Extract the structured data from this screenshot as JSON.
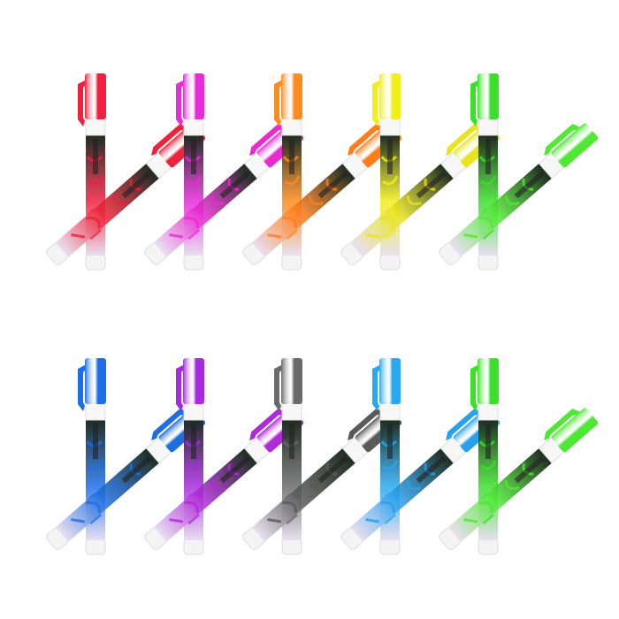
{
  "rows": [
    [
      {
        "vertical": "#f0203e",
        "diagonal": "#ee2238"
      },
      {
        "vertical": "#e82ad8",
        "diagonal": "#e82ad0"
      },
      {
        "vertical": "#ff8a1e",
        "diagonal": "#ff7e1a"
      },
      {
        "vertical": "#f2ee1a",
        "diagonal": "#e8e420"
      },
      {
        "vertical": "#3ce02a",
        "diagonal": "#52e836"
      }
    ],
    [
      {
        "vertical": "#1e6ee8",
        "diagonal": "#1e6ee0"
      },
      {
        "vertical": "#a82ae0",
        "diagonal": "#b02ad8"
      },
      {
        "vertical": "#6a6a6a",
        "diagonal": "#5a5a5a"
      },
      {
        "vertical": "#28a8f0",
        "diagonal": "#28a0ec"
      },
      {
        "vertical": "#3ce02a",
        "diagonal": "#4ee834"
      }
    ]
  ]
}
